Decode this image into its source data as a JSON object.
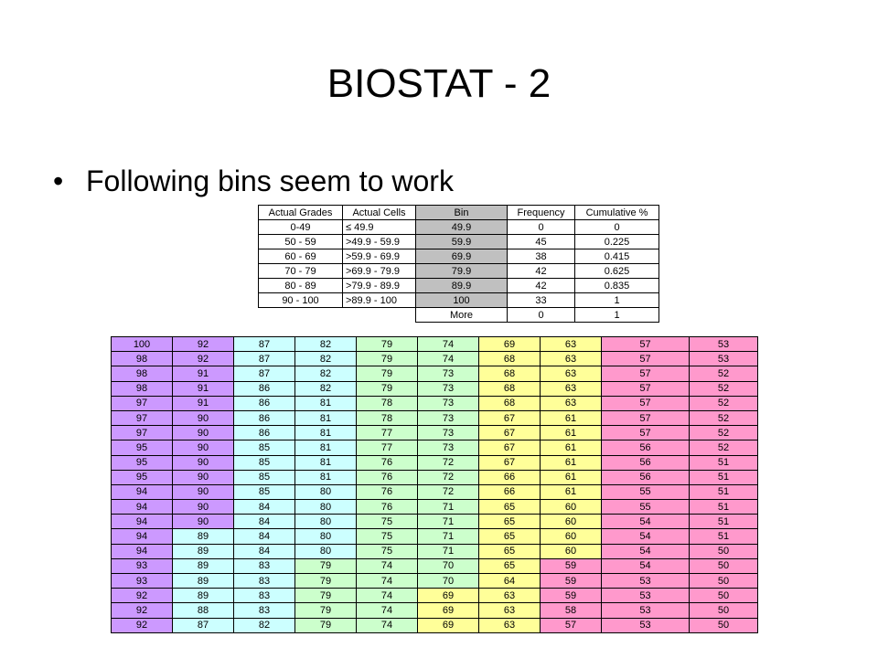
{
  "slide": {
    "title": "BIOSTAT - 2",
    "bullet_symbol": "•",
    "bullet": "Following bins seem to work"
  },
  "bins_table": {
    "headers": [
      "Actual Grades",
      "Actual Cells",
      "Bin",
      "Frequency",
      "Cumulative %"
    ],
    "rows": [
      [
        "0-49",
        "≤ 49.9",
        "49.9",
        "0",
        "0"
      ],
      [
        "50 - 59",
        ">49.9 - 59.9",
        "59.9",
        "45",
        "0.225"
      ],
      [
        "60 - 69",
        ">59.9 - 69.9",
        "69.9",
        "38",
        "0.415"
      ],
      [
        "70 - 79",
        ">69.9 - 79.9",
        "79.9",
        "42",
        "0.625"
      ],
      [
        "80 - 89",
        ">79.9 - 89.9",
        "89.9",
        "42",
        "0.835"
      ],
      [
        "90 - 100",
        ">89.9 - 100",
        "100",
        "33",
        "1"
      ],
      [
        "",
        "",
        "More",
        "0",
        "1"
      ]
    ]
  },
  "grades_table": {
    "colors": {
      "purple": "#cc99ff",
      "cyan": "#ccffff",
      "green": "#ccffcc",
      "yellow": "#ffff99",
      "pink": "#ff99cc"
    },
    "rows": [
      [
        "100",
        "92",
        "87",
        "82",
        "79",
        "74",
        "69",
        "63",
        "57",
        "53"
      ],
      [
        "98",
        "92",
        "87",
        "82",
        "79",
        "74",
        "68",
        "63",
        "57",
        "53"
      ],
      [
        "98",
        "91",
        "87",
        "82",
        "79",
        "73",
        "68",
        "63",
        "57",
        "52"
      ],
      [
        "98",
        "91",
        "86",
        "82",
        "79",
        "73",
        "68",
        "63",
        "57",
        "52"
      ],
      [
        "97",
        "91",
        "86",
        "81",
        "78",
        "73",
        "68",
        "63",
        "57",
        "52"
      ],
      [
        "97",
        "90",
        "86",
        "81",
        "78",
        "73",
        "67",
        "61",
        "57",
        "52"
      ],
      [
        "97",
        "90",
        "86",
        "81",
        "77",
        "73",
        "67",
        "61",
        "57",
        "52"
      ],
      [
        "95",
        "90",
        "85",
        "81",
        "77",
        "73",
        "67",
        "61",
        "56",
        "52"
      ],
      [
        "95",
        "90",
        "85",
        "81",
        "76",
        "72",
        "67",
        "61",
        "56",
        "51"
      ],
      [
        "95",
        "90",
        "85",
        "81",
        "76",
        "72",
        "66",
        "61",
        "56",
        "51"
      ],
      [
        "94",
        "90",
        "85",
        "80",
        "76",
        "72",
        "66",
        "61",
        "55",
        "51"
      ],
      [
        "94",
        "90",
        "84",
        "80",
        "76",
        "71",
        "65",
        "60",
        "55",
        "51"
      ],
      [
        "94",
        "90",
        "84",
        "80",
        "75",
        "71",
        "65",
        "60",
        "54",
        "51"
      ],
      [
        "94",
        "89",
        "84",
        "80",
        "75",
        "71",
        "65",
        "60",
        "54",
        "51"
      ],
      [
        "94",
        "89",
        "84",
        "80",
        "75",
        "71",
        "65",
        "60",
        "54",
        "50"
      ],
      [
        "93",
        "89",
        "83",
        "79",
        "74",
        "70",
        "65",
        "59",
        "54",
        "50"
      ],
      [
        "93",
        "89",
        "83",
        "79",
        "74",
        "70",
        "64",
        "59",
        "53",
        "50"
      ],
      [
        "92",
        "89",
        "83",
        "79",
        "74",
        "69",
        "63",
        "59",
        "53",
        "50"
      ],
      [
        "92",
        "88",
        "83",
        "79",
        "74",
        "69",
        "63",
        "58",
        "53",
        "50"
      ],
      [
        "92",
        "87",
        "82",
        "79",
        "74",
        "69",
        "63",
        "57",
        "53",
        "50"
      ]
    ]
  }
}
